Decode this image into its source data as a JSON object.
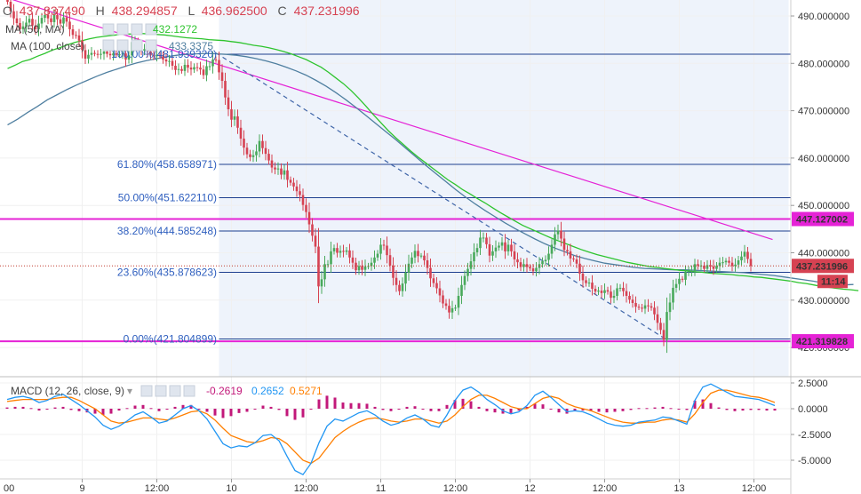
{
  "header": {
    "open_label": "O",
    "open": "437.837490",
    "high_label": "H",
    "high": "438.294857",
    "low_label": "L",
    "low": "436.962500",
    "close_label": "C",
    "close": "437.231996"
  },
  "indicators": {
    "ma50": {
      "label": "MA (50, MA)",
      "value": "432.1272"
    },
    "ma100": {
      "label": "MA (100, close)",
      "value": "433.3375"
    },
    "macd": {
      "label": "MACD (12, 26, close, 9)",
      "hist": "-0.2619",
      "macd": "0.2652",
      "signal": "0.5271"
    }
  },
  "colors": {
    "bull": "#49a95b",
    "bear": "#d64252",
    "ma50": "#2ec42e",
    "ma100": "#4f7fa0",
    "fib": "#1f3f8f",
    "fib_text": "#2f5fbf",
    "magenta": "#e523d6",
    "trend_dash": "#3f65a8",
    "macd_line": "#2196f3",
    "signal_line": "#ff7f00",
    "hist": "#c2187a",
    "selection": "#eef3fb"
  },
  "chart_data": [
    {
      "type": "candlestick",
      "title": "",
      "x_ticks": [
        "9",
        "12:00",
        "10",
        "12:00",
        "11",
        "12:00",
        "12",
        "12:00",
        "13",
        "12:00"
      ],
      "x_tick_index": [
        24,
        48,
        72,
        96,
        120,
        144,
        168,
        192,
        216,
        240
      ],
      "first_tick_label": "00",
      "ylim": [
        418.5,
        493.5
      ],
      "y_ticks": [
        "420.000000",
        "430.000000",
        "440.000000",
        "450.000000",
        "460.000000",
        "470.000000",
        "480.000000",
        "490.000000"
      ],
      "fibonacci": [
        {
          "label": "100.00%(481.939320)",
          "value": 481.93932
        },
        {
          "label": "61.80%(458.658971)",
          "value": 458.658971
        },
        {
          "label": "50.00%(451.622110)",
          "value": 451.62211
        },
        {
          "label": "38.20%(444.585248)",
          "value": 444.585248
        },
        {
          "label": "23.60%(435.878623)",
          "value": 435.878623
        },
        {
          "label": "0.00%(421.804899)",
          "value": 421.804899
        }
      ],
      "horizontal_levels": [
        {
          "label": "447.127002",
          "value": 447.127002
        },
        {
          "label": "421.319828",
          "value": 421.319828
        }
      ],
      "current_price": {
        "label": "437.231996",
        "value": 437.231996,
        "countdown": "11:14"
      },
      "trend_lines": [
        {
          "style": "solid",
          "color": "magenta",
          "from": [
            -1,
            494
          ],
          "to": [
            246,
            442.8
          ]
        },
        {
          "style": "dashed",
          "color": "trend_dash",
          "from": [
            67,
            482.2
          ],
          "to": [
            212,
            421.6
          ]
        }
      ],
      "close": [
        493.0,
        491.0,
        489.5,
        488.5,
        487.2,
        487.8,
        488.6,
        489.4,
        488.0,
        487.2,
        488.4,
        489.6,
        490.2,
        489.5,
        488.7,
        490.2,
        489.3,
        488.4,
        489.7,
        488.8,
        487.2,
        486.0,
        485.9,
        484.8,
        482.8,
        481.0,
        481.8,
        482.2,
        482.0,
        481.8,
        482.0,
        482.5,
        482.0,
        481.7,
        482.1,
        481.8,
        481.9,
        482.1,
        480.8,
        481.7,
        484.5,
        484.6,
        483.7,
        482.7,
        483.0,
        482.5,
        481.7,
        481.5,
        481.8,
        481.5,
        480.8,
        480.4,
        480.5,
        479.5,
        478.6,
        478.8,
        478.4,
        479.7,
        479.1,
        478.7,
        479.2,
        479.1,
        478.7,
        477.5,
        479.4,
        479.4,
        480.8,
        480.7,
        478.1,
        476.3,
        472.8,
        470.3,
        468.1,
        468.8,
        466.4,
        464.1,
        462.2,
        460.8,
        460.2,
        460.6,
        461.4,
        463.6,
        462.1,
        460.9,
        459.5,
        458.0,
        457.6,
        457.8,
        456.5,
        457.4,
        455.4,
        454.8,
        454.0,
        453.0,
        452.2,
        450.1,
        448.6,
        446.0,
        443.6,
        441.3,
        432.9,
        434.4,
        437.6,
        437.6,
        440.3,
        441.0,
        440.0,
        440.4,
        440.2,
        440.5,
        439.0,
        437.9,
        436.3,
        437.2,
        436.4,
        437.1,
        437.2,
        437.9,
        439.0,
        439.8,
        441.7,
        441.5,
        439.5,
        437.3,
        434.7,
        433.2,
        431.9,
        433.5,
        435.8,
        437.7,
        439.0,
        440.4,
        439.3,
        439.4,
        438.4,
        436.8,
        434.6,
        433.6,
        432.5,
        431.0,
        429.3,
        428.8,
        427.4,
        428.3,
        428.4,
        430.9,
        433.2,
        435.1,
        436.6,
        438.2,
        440.1,
        441.0,
        443.2,
        443.2,
        441.8,
        439.4,
        440.3,
        441.1,
        441.5,
        442.2,
        440.3,
        441.7,
        440.3,
        438.6,
        438.0,
        437.0,
        437.6,
        437.0,
        436.7,
        436.1,
        436.8,
        437.6,
        438.2,
        438.5,
        439.8,
        441.7,
        443.9,
        444.7,
        443.0,
        440.6,
        440.3,
        438.8,
        438.6,
        437.7,
        435.6,
        434.2,
        433.6,
        433.7,
        432.4,
        431.8,
        432.0,
        431.5,
        432.1,
        431.8,
        430.5,
        430.9,
        432.5,
        432.6,
        431.9,
        430.9,
        430.1,
        429.4,
        428.6,
        428.4,
        428.2,
        428.9,
        428.7,
        428.4,
        427.0,
        425.2,
        423.7,
        421.6,
        427.5,
        429.5,
        432.6,
        433.4,
        434.5,
        434.3,
        436.0,
        436.1,
        436.1,
        437.6,
        437.3,
        437.3,
        436.6,
        437.4,
        437.1,
        436.6,
        437.2,
        437.9,
        438.0,
        438.3,
        437.9,
        437.2,
        437.5,
        438.4,
        439.2,
        440.2,
        438.7,
        437.2
      ],
      "ma50": [
        478.9,
        479.6,
        480.4,
        480.8,
        481.5,
        482.1,
        482.8,
        483.3,
        483.9,
        484.4,
        484.8,
        485.2,
        485.5,
        485.7,
        485.9,
        486.1,
        486.2,
        486.2,
        486.3,
        486.2,
        486.1,
        486.0,
        485.8,
        485.6,
        485.4,
        485.3,
        485.2,
        485.0,
        484.9,
        484.8,
        484.6,
        484.4,
        484.1,
        483.8,
        483.6,
        483.3,
        482.9,
        482.5,
        482.0,
        481.4,
        480.8,
        480.0,
        479.2,
        478.1,
        476.9,
        475.7,
        474.3,
        472.7,
        471.0,
        469.2,
        467.5,
        465.8,
        464.3,
        462.9,
        461.5,
        460.2,
        459.0,
        457.8,
        456.6,
        455.4,
        454.4,
        453.3,
        452.4,
        451.4,
        450.5,
        449.5,
        448.5,
        447.6,
        446.7,
        445.8,
        445.1,
        444.4,
        443.7,
        443.0,
        442.4,
        441.8,
        441.2,
        440.6,
        440.1,
        439.6,
        439.2,
        438.8,
        438.4,
        438.0,
        437.7,
        437.4,
        437.1,
        436.9,
        436.7,
        436.5,
        436.3,
        436.2,
        436.0,
        435.9,
        435.7,
        435.6,
        435.5,
        435.4,
        435.2,
        435.1,
        434.9,
        434.8,
        434.6,
        434.4,
        434.2,
        434.0,
        433.7,
        433.5,
        433.2,
        432.9,
        432.7,
        432.5,
        432.3,
        432.2,
        432.0
      ],
      "ma50_start_index": 0,
      "ma50_step": 2.4,
      "ma100": [
        467.0,
        468.2,
        469.6,
        470.9,
        472.3,
        473.4,
        474.5,
        475.5,
        476.4,
        477.3,
        478.1,
        478.8,
        479.5,
        480.1,
        480.6,
        481.0,
        481.4,
        481.7,
        481.9,
        482.0,
        482.1,
        482.0,
        481.9,
        481.7,
        481.4,
        481.0,
        480.5,
        479.9,
        479.2,
        478.4,
        477.5,
        476.4,
        475.2,
        473.8,
        472.3,
        470.7,
        469.0,
        467.3,
        465.6,
        463.9,
        462.1,
        460.3,
        458.5,
        456.8,
        455.1,
        453.4,
        451.8,
        450.3,
        448.9,
        447.6,
        446.3,
        445.1,
        444.0,
        442.9,
        441.9,
        441.0,
        440.2,
        439.4,
        438.8,
        438.3,
        437.8,
        437.5,
        437.2,
        436.9,
        436.7,
        436.6,
        436.5,
        436.4,
        436.4,
        436.3,
        436.2,
        436.1,
        436.0,
        435.9,
        435.8,
        435.6,
        435.4,
        435.2,
        434.9,
        434.6,
        434.3,
        434.0,
        433.6,
        433.3,
        433.2,
        433.3
      ],
      "ma100_start_index": 0,
      "ma100_step": 3.2
    },
    {
      "type": "macd",
      "ylim": [
        -6.8,
        2.9
      ],
      "y_ticks": [
        "2.5000",
        "0.0000",
        "-2.5000",
        "-5.0000"
      ],
      "macd": [
        0.9,
        1.1,
        1.2,
        1.0,
        0.6,
        0.8,
        1.2,
        1.4,
        0.9,
        0.4,
        -0.2,
        -0.8,
        -1.6,
        -2.0,
        -1.7,
        -1.2,
        -0.6,
        -0.3,
        -0.8,
        -1.4,
        -1.2,
        -0.6,
        0.0,
        0.3,
        -0.2,
        -1.0,
        -2.2,
        -3.4,
        -3.8,
        -3.6,
        -3.7,
        -3.3,
        -2.6,
        -2.5,
        -3.1,
        -4.6,
        -6.0,
        -6.4,
        -5.3,
        -3.3,
        -1.7,
        -1.0,
        -1.2,
        -0.8,
        -0.4,
        -0.2,
        -0.6,
        -1.2,
        -1.6,
        -1.4,
        -0.9,
        -0.6,
        -1.0,
        -1.6,
        -1.8,
        -0.6,
        0.8,
        1.8,
        2.1,
        1.6,
        0.9,
        0.4,
        -0.2,
        -0.5,
        -0.3,
        0.3,
        1.3,
        1.7,
        1.1,
        0.4,
        -0.3,
        -0.2,
        -0.3,
        -0.6,
        -1.0,
        -1.4,
        -1.6,
        -1.7,
        -1.6,
        -1.3,
        -1.2,
        -1.1,
        -0.8,
        -0.9,
        -1.2,
        -1.5,
        0.8,
        2.1,
        2.4,
        2.0,
        1.6,
        1.2,
        1.1,
        1.0,
        0.9,
        0.6,
        0.3
      ],
      "signal": [
        0.7,
        0.8,
        0.9,
        0.9,
        0.9,
        0.9,
        1.0,
        1.1,
        1.1,
        0.8,
        0.4,
        0.0,
        -0.6,
        -1.2,
        -1.4,
        -1.3,
        -1.1,
        -0.9,
        -0.9,
        -1.0,
        -1.1,
        -0.9,
        -0.6,
        -0.3,
        -0.2,
        -0.5,
        -1.1,
        -1.9,
        -2.6,
        -2.9,
        -3.2,
        -3.3,
        -3.1,
        -2.8,
        -2.9,
        -3.4,
        -4.2,
        -5.0,
        -5.3,
        -4.8,
        -3.8,
        -2.8,
        -2.2,
        -1.7,
        -1.3,
        -1.0,
        -0.9,
        -1.0,
        -1.2,
        -1.3,
        -1.2,
        -1.0,
        -1.0,
        -1.2,
        -1.4,
        -1.2,
        -0.6,
        0.2,
        0.9,
        1.3,
        1.3,
        1.0,
        0.6,
        0.2,
        0.0,
        0.0,
        0.5,
        1.0,
        1.2,
        1.0,
        0.5,
        0.2,
        0.0,
        -0.2,
        -0.5,
        -0.8,
        -1.1,
        -1.3,
        -1.4,
        -1.4,
        -1.3,
        -1.3,
        -1.1,
        -1.0,
        -1.1,
        -1.3,
        -0.5,
        0.6,
        1.5,
        1.8,
        1.8,
        1.6,
        1.4,
        1.2,
        1.1,
        0.9,
        0.6
      ]
    }
  ]
}
